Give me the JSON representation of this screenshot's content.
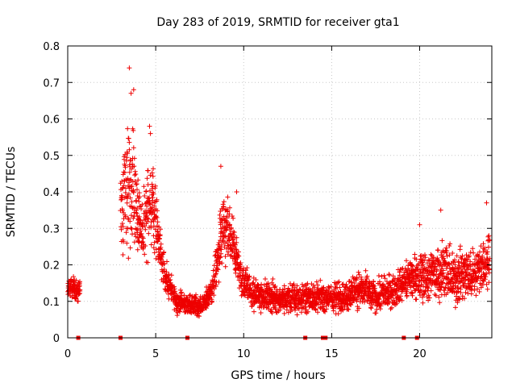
{
  "chart_data": {
    "type": "scatter",
    "title": "Day 283 of 2019, SRMTID for receiver gta1",
    "xlabel": "GPS time / hours",
    "ylabel": "SRMTID / TECUs",
    "xlim": [
      0,
      24.1
    ],
    "ylim": [
      0,
      0.8
    ],
    "xticks": [
      0,
      5,
      10,
      15,
      20
    ],
    "xtick_labels": [
      "0",
      "5",
      "10",
      "15",
      "20"
    ],
    "yticks": [
      0,
      0.1,
      0.2,
      0.3,
      0.4,
      0.5,
      0.6,
      0.7,
      0.8
    ],
    "ytick_labels": [
      "0",
      "0.1",
      "0.2",
      "0.3",
      "0.4",
      "0.5",
      "0.6",
      "0.7",
      "0.8"
    ],
    "grid": true,
    "marker": "+",
    "color": "#ee0000",
    "series": [
      {
        "name": "SRMTID",
        "envelope": [
          {
            "x": 0.0,
            "low": 0.1,
            "high": 0.17
          },
          {
            "x": 0.3,
            "low": 0.09,
            "high": 0.18
          },
          {
            "x": 0.6,
            "low": 0.08,
            "high": 0.17
          },
          {
            "x": 3.0,
            "low": 0.2,
            "high": 0.45
          },
          {
            "x": 3.4,
            "low": 0.16,
            "high": 0.72
          },
          {
            "x": 3.7,
            "low": 0.18,
            "high": 0.6
          },
          {
            "x": 4.0,
            "low": 0.2,
            "high": 0.45
          },
          {
            "x": 4.3,
            "low": 0.16,
            "high": 0.42
          },
          {
            "x": 4.7,
            "low": 0.18,
            "high": 0.57
          },
          {
            "x": 5.0,
            "low": 0.18,
            "high": 0.46
          },
          {
            "x": 5.3,
            "low": 0.14,
            "high": 0.3
          },
          {
            "x": 5.7,
            "low": 0.09,
            "high": 0.2
          },
          {
            "x": 6.2,
            "low": 0.06,
            "high": 0.14
          },
          {
            "x": 7.0,
            "low": 0.05,
            "high": 0.13
          },
          {
            "x": 7.6,
            "low": 0.05,
            "high": 0.12
          },
          {
            "x": 8.2,
            "low": 0.08,
            "high": 0.18
          },
          {
            "x": 8.8,
            "low": 0.14,
            "high": 0.44
          },
          {
            "x": 9.3,
            "low": 0.16,
            "high": 0.38
          },
          {
            "x": 9.8,
            "low": 0.1,
            "high": 0.25
          },
          {
            "x": 10.5,
            "low": 0.06,
            "high": 0.18
          },
          {
            "x": 11.5,
            "low": 0.05,
            "high": 0.17
          },
          {
            "x": 12.5,
            "low": 0.05,
            "high": 0.16
          },
          {
            "x": 13.5,
            "low": 0.05,
            "high": 0.17
          },
          {
            "x": 14.5,
            "low": 0.06,
            "high": 0.16
          },
          {
            "x": 15.5,
            "low": 0.05,
            "high": 0.17
          },
          {
            "x": 16.5,
            "low": 0.07,
            "high": 0.2
          },
          {
            "x": 17.5,
            "low": 0.05,
            "high": 0.18
          },
          {
            "x": 18.5,
            "low": 0.07,
            "high": 0.19
          },
          {
            "x": 19.5,
            "low": 0.09,
            "high": 0.24
          },
          {
            "x": 20.5,
            "low": 0.06,
            "high": 0.28
          },
          {
            "x": 21.3,
            "low": 0.08,
            "high": 0.3
          },
          {
            "x": 22.0,
            "low": 0.06,
            "high": 0.26
          },
          {
            "x": 23.0,
            "low": 0.08,
            "high": 0.27
          },
          {
            "x": 24.0,
            "low": 0.1,
            "high": 0.33
          }
        ],
        "gaps": [
          [
            0.7,
            3.0
          ]
        ],
        "notable_points": [
          {
            "x": 3.5,
            "y": 0.74
          },
          {
            "x": 3.6,
            "y": 0.67
          },
          {
            "x": 3.75,
            "y": 0.68
          },
          {
            "x": 4.65,
            "y": 0.58
          },
          {
            "x": 4.7,
            "y": 0.56
          },
          {
            "x": 8.7,
            "y": 0.47
          },
          {
            "x": 9.6,
            "y": 0.4
          },
          {
            "x": 20.0,
            "y": 0.31
          },
          {
            "x": 21.2,
            "y": 0.35
          },
          {
            "x": 23.8,
            "y": 0.37
          },
          {
            "x": 13.5,
            "y": 0.0
          },
          {
            "x": 14.5,
            "y": 0.0
          },
          {
            "x": 14.65,
            "y": 0.0
          },
          {
            "x": 19.1,
            "y": 0.0
          },
          {
            "x": 19.85,
            "y": 0.0
          },
          {
            "x": 3.0,
            "y": 0.0
          },
          {
            "x": 0.6,
            "y": 0.0
          },
          {
            "x": 6.8,
            "y": 0.0
          }
        ]
      }
    ]
  }
}
